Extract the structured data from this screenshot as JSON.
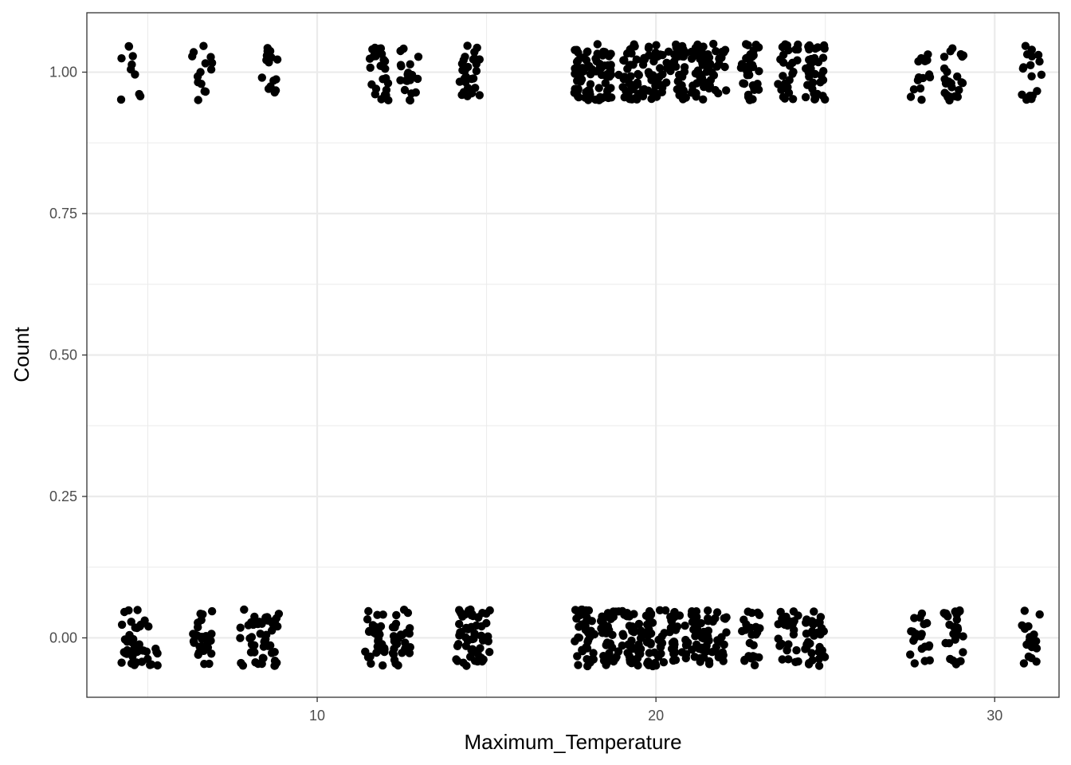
{
  "chart_data": {
    "type": "scatter",
    "title": "",
    "xlabel": "Maximum_Temperature",
    "ylabel": "Count",
    "xlim": [
      3.2,
      31.9
    ],
    "ylim": [
      -0.105,
      1.105
    ],
    "x_ticks": [
      10,
      20,
      30
    ],
    "y_ticks": [
      0.0,
      0.25,
      0.5,
      0.75,
      1.0
    ],
    "y_tick_labels": [
      "0.00",
      "0.25",
      "0.50",
      "0.75",
      "1.00"
    ],
    "x_minor_grid": [
      5,
      15,
      25
    ],
    "y_minor_grid": [
      0.125,
      0.375,
      0.625,
      0.875
    ],
    "grid": true,
    "legend": "none",
    "jitter": {
      "x": 0.3,
      "y": 0.05
    },
    "point_color": "#000000",
    "panel_grid_color": "#ebebeb",
    "series": [
      {
        "y": 1,
        "clusters": [
          {
            "x": 4.5,
            "n": 10
          },
          {
            "x": 6.6,
            "n": 14
          },
          {
            "x": 8.6,
            "n": 16
          },
          {
            "x": 11.8,
            "n": 26
          },
          {
            "x": 12.7,
            "n": 20
          },
          {
            "x": 14.5,
            "n": 28
          },
          {
            "x": 17.8,
            "n": 40
          },
          {
            "x": 18.4,
            "n": 38
          },
          {
            "x": 19.2,
            "n": 36
          },
          {
            "x": 19.9,
            "n": 38
          },
          {
            "x": 20.6,
            "n": 36
          },
          {
            "x": 21.3,
            "n": 34
          },
          {
            "x": 21.8,
            "n": 24
          },
          {
            "x": 22.8,
            "n": 34
          },
          {
            "x": 23.9,
            "n": 26
          },
          {
            "x": 24.7,
            "n": 34
          },
          {
            "x": 27.8,
            "n": 14
          },
          {
            "x": 28.8,
            "n": 24
          },
          {
            "x": 31.1,
            "n": 18
          }
        ]
      },
      {
        "y": 0,
        "clusters": [
          {
            "x": 4.5,
            "n": 26
          },
          {
            "x": 5.0,
            "n": 16
          },
          {
            "x": 6.6,
            "n": 26
          },
          {
            "x": 8.0,
            "n": 20
          },
          {
            "x": 8.6,
            "n": 28
          },
          {
            "x": 11.7,
            "n": 30
          },
          {
            "x": 12.5,
            "n": 28
          },
          {
            "x": 14.4,
            "n": 30
          },
          {
            "x": 14.8,
            "n": 26
          },
          {
            "x": 17.9,
            "n": 38
          },
          {
            "x": 18.6,
            "n": 36
          },
          {
            "x": 19.3,
            "n": 40
          },
          {
            "x": 20.0,
            "n": 34
          },
          {
            "x": 20.7,
            "n": 30
          },
          {
            "x": 21.3,
            "n": 34
          },
          {
            "x": 21.8,
            "n": 22
          },
          {
            "x": 22.8,
            "n": 24
          },
          {
            "x": 23.9,
            "n": 26
          },
          {
            "x": 24.7,
            "n": 36
          },
          {
            "x": 27.8,
            "n": 20
          },
          {
            "x": 28.8,
            "n": 26
          },
          {
            "x": 31.1,
            "n": 16
          }
        ]
      }
    ]
  }
}
